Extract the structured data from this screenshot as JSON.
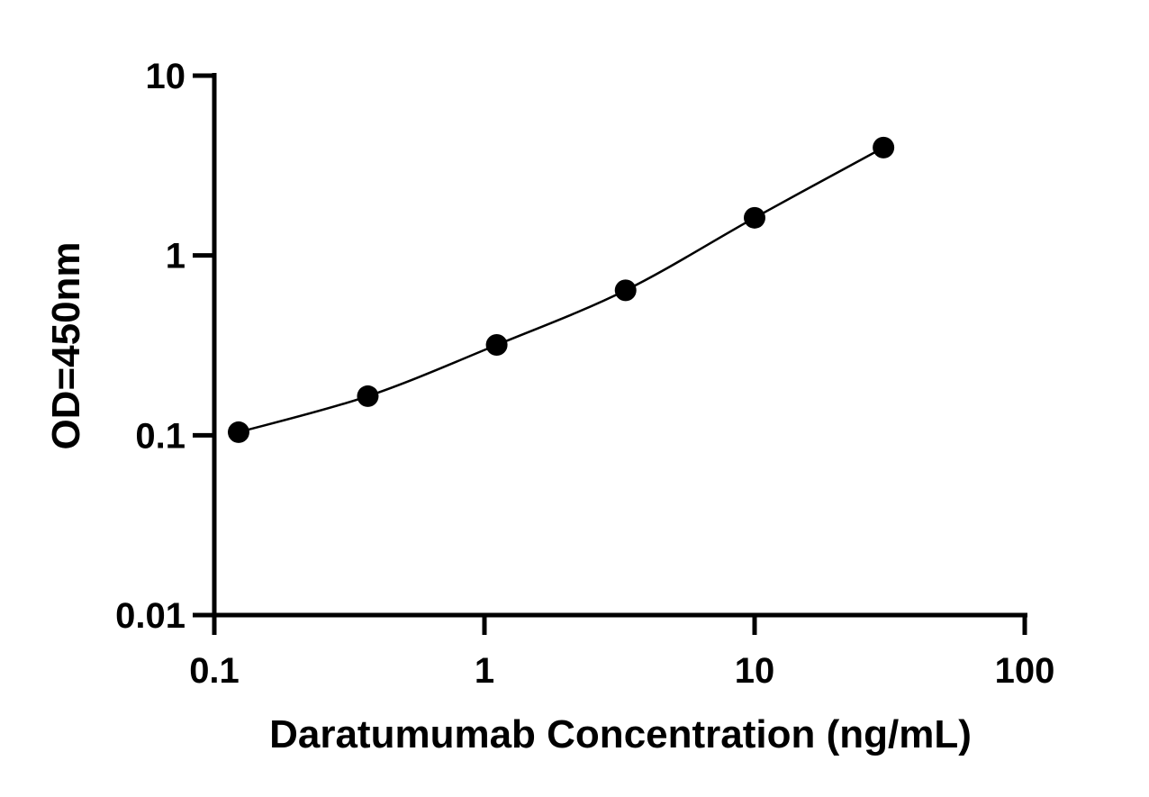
{
  "chart_data": {
    "type": "scatter",
    "title": "",
    "xlabel": "Daratumumab Concentration (ng/mL)",
    "ylabel": "OD=450nm",
    "x_scale": "log",
    "y_scale": "log",
    "xlim": [
      0.1,
      100
    ],
    "ylim": [
      0.01,
      10
    ],
    "x_ticks": [
      "0.1",
      "1",
      "10",
      "100"
    ],
    "y_ticks": [
      "0.01",
      "0.1",
      "1",
      "10"
    ],
    "grid": false,
    "legend": "none",
    "marker_color": "#000000",
    "line_color": "#000000",
    "fit_line": true,
    "series": [
      {
        "x": [
          0.123,
          0.37,
          1.11,
          3.33,
          10,
          30
        ],
        "y": [
          0.104,
          0.165,
          0.318,
          0.64,
          1.62,
          3.98
        ]
      }
    ]
  }
}
